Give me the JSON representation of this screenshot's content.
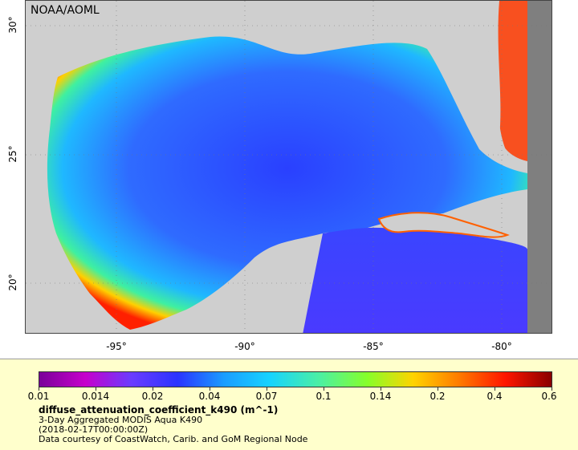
{
  "map": {
    "watermark": "NOAA/AOML",
    "lat_labels": [
      "30°",
      "25°",
      "20°"
    ],
    "lon_labels": [
      "-95°",
      "-90°",
      "-85°",
      "-80°"
    ]
  },
  "legend": {
    "ticks": [
      "0.01",
      "0.014",
      "0.02",
      "0.04",
      "0.07",
      "0.1",
      "0.14",
      "0.2",
      "0.4",
      "0.6"
    ],
    "title": "diffuse_attenuation_coefficient_k490 (m^-1)",
    "subtitle": "3-Day Aggregated MODIS Aqua K490",
    "date": "(2018-02-17T00:00:00Z)",
    "credit": "Data courtesy of CoastWatch, Carib. and GoM Regional Node"
  },
  "colors": {
    "land": "#cfcfcf",
    "no_data": "#7f7f7f",
    "deep_water": "#2a33ff",
    "coastal_high": "#ff1500",
    "legend_bg": "#ffffcc"
  }
}
